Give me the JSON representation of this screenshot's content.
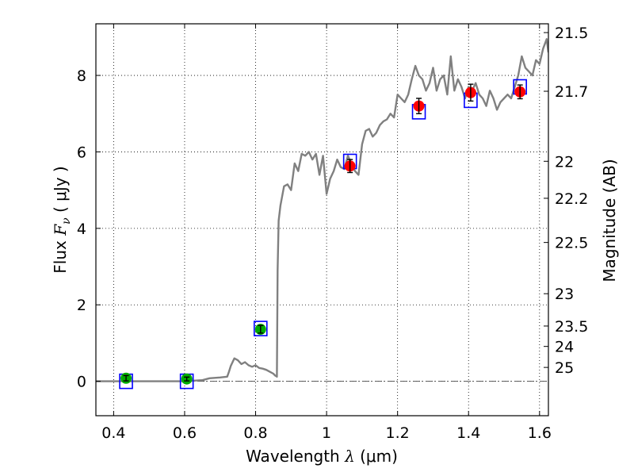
{
  "chart_data": {
    "type": "line",
    "xlabel": "Wavelength  λ (μm)",
    "xlabel_parts": {
      "prefix": "Wavelength  ",
      "symbol": "λ",
      "suffix": " (μm)"
    },
    "ylabel": "Flux  Fν  ( μJy )",
    "ylabel_parts": {
      "prefix": "Flux  ",
      "symbol": "F",
      "subscript": "ν",
      "suffix": "  ( μJy )"
    },
    "y2label": "Magnitude (AB)",
    "xlim": [
      0.35,
      1.625
    ],
    "ylim": [
      -0.9,
      9.35
    ],
    "x_ticks": [
      0.4,
      0.6,
      0.8,
      1.0,
      1.2,
      1.4,
      1.6
    ],
    "x_tick_labels": [
      "0.4",
      "0.6",
      "0.8",
      "1",
      "1.2",
      "1.4",
      "1.6"
    ],
    "y_ticks": [
      0,
      2,
      4,
      6,
      8
    ],
    "y_tick_labels": [
      "0",
      "2",
      "4",
      "6",
      "8"
    ],
    "y2_tick_labels": [
      "21.5",
      "21.7",
      "22",
      "22.2",
      "22.5",
      "23",
      "23.5",
      "24",
      "25"
    ],
    "grid": true,
    "colors": {
      "sed": "#808080",
      "model_box": "#0000ff",
      "phot_red": "#ff0000",
      "phot_green": "#00aa00",
      "errorbar": "#000000",
      "zero_line": "#555555"
    },
    "series": [
      {
        "kind": "model_sed",
        "x": [
          0.35,
          0.5,
          0.6,
          0.65,
          0.67,
          0.7,
          0.72,
          0.725,
          0.73,
          0.74,
          0.75,
          0.76,
          0.77,
          0.78,
          0.79,
          0.8,
          0.81,
          0.82,
          0.83,
          0.84,
          0.85,
          0.855,
          0.86,
          0.862,
          0.865,
          0.87,
          0.88,
          0.89,
          0.9,
          0.91,
          0.92,
          0.93,
          0.94,
          0.95,
          0.96,
          0.97,
          0.98,
          0.99,
          1.0,
          1.01,
          1.02,
          1.03,
          1.04,
          1.05,
          1.06,
          1.07,
          1.08,
          1.09,
          1.1,
          1.11,
          1.12,
          1.13,
          1.14,
          1.15,
          1.16,
          1.17,
          1.18,
          1.19,
          1.2,
          1.21,
          1.22,
          1.23,
          1.24,
          1.25,
          1.26,
          1.27,
          1.28,
          1.29,
          1.3,
          1.31,
          1.32,
          1.33,
          1.34,
          1.35,
          1.36,
          1.37,
          1.38,
          1.39,
          1.4,
          1.41,
          1.42,
          1.43,
          1.44,
          1.45,
          1.46,
          1.47,
          1.48,
          1.49,
          1.5,
          1.51,
          1.52,
          1.53,
          1.54,
          1.55,
          1.56,
          1.57,
          1.58,
          1.59,
          1.6,
          1.61,
          1.62,
          1.625
        ],
        "y": [
          0.0,
          0.0,
          0.0,
          0.03,
          0.08,
          0.1,
          0.12,
          0.25,
          0.4,
          0.6,
          0.55,
          0.45,
          0.5,
          0.42,
          0.38,
          0.42,
          0.35,
          0.33,
          0.3,
          0.25,
          0.2,
          0.15,
          0.12,
          2.9,
          4.2,
          4.6,
          5.1,
          5.15,
          5.0,
          5.7,
          5.5,
          5.95,
          5.9,
          6.0,
          5.8,
          5.95,
          5.4,
          5.9,
          4.9,
          5.3,
          5.5,
          5.8,
          5.6,
          5.55,
          5.9,
          5.7,
          5.5,
          5.4,
          6.2,
          6.55,
          6.6,
          6.4,
          6.5,
          6.7,
          6.8,
          6.85,
          7.0,
          6.9,
          7.5,
          7.4,
          7.3,
          7.5,
          7.9,
          8.25,
          8.0,
          7.9,
          7.6,
          7.8,
          8.2,
          7.6,
          7.9,
          8.0,
          7.5,
          8.5,
          7.6,
          7.9,
          7.7,
          7.4,
          7.7,
          7.6,
          7.8,
          7.5,
          7.4,
          7.2,
          7.6,
          7.4,
          7.1,
          7.3,
          7.4,
          7.5,
          7.4,
          7.7,
          8.0,
          8.5,
          8.2,
          8.1,
          8.0,
          8.4,
          8.3,
          8.7,
          8.95,
          8.6
        ]
      },
      {
        "kind": "model_photometry",
        "x": [
          0.435,
          0.606,
          0.814,
          1.066,
          1.26,
          1.406,
          1.545
        ],
        "y": [
          0.0,
          0.0,
          1.38,
          5.75,
          7.05,
          7.35,
          7.7
        ]
      },
      {
        "kind": "observed_photometry",
        "points": [
          {
            "x": 0.435,
            "y": 0.08,
            "err": 0.07,
            "color": "green"
          },
          {
            "x": 0.606,
            "y": 0.06,
            "err": 0.05,
            "color": "green"
          },
          {
            "x": 0.814,
            "y": 1.36,
            "err": 0.1,
            "color": "green"
          },
          {
            "x": 1.066,
            "y": 5.63,
            "err": 0.17,
            "color": "red"
          },
          {
            "x": 1.26,
            "y": 7.2,
            "err": 0.2,
            "color": "red"
          },
          {
            "x": 1.406,
            "y": 7.55,
            "err": 0.22,
            "color": "red"
          },
          {
            "x": 1.545,
            "y": 7.57,
            "err": 0.18,
            "color": "red"
          }
        ]
      }
    ]
  }
}
